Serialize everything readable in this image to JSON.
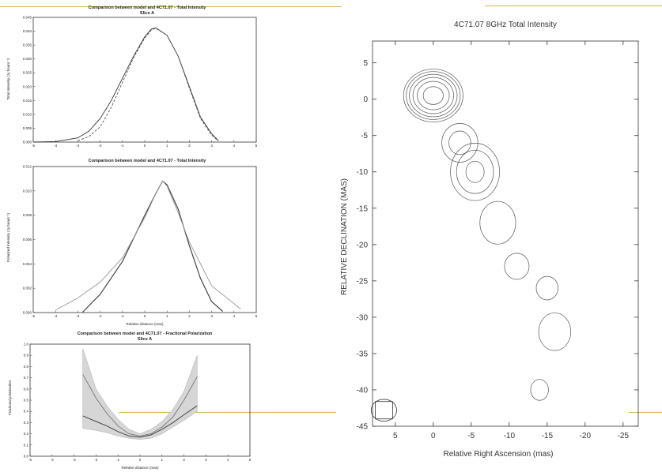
{
  "slide": {
    "accent_color": "#d9b64f"
  },
  "chart_data": [
    {
      "id": "total-intensity-profile",
      "type": "line",
      "title": "Comparison between model and 4C71.07 - Total Intensity",
      "subtitle": "Slice A",
      "xlabel": "",
      "ylabel": "Total Intensity (Jy beam⁻¹)",
      "xlim": [
        -5,
        5
      ],
      "ylim": [
        0,
        0.045
      ],
      "xticks": [
        "-5",
        "-4",
        "-3",
        "-2",
        "-1",
        "0",
        "1",
        "2",
        "3",
        "4",
        "5"
      ],
      "yticks": [
        "0.000",
        "0.005",
        "0.010",
        "0.015",
        "0.020",
        "0.025",
        "0.030",
        "0.035",
        "0.040",
        "0.045"
      ],
      "series": [
        {
          "style": "solid",
          "x": [
            -5,
            -4,
            -3,
            -2.5,
            -2,
            -1.5,
            -1,
            -0.5,
            0,
            0.3,
            0.5,
            1,
            1.5,
            2,
            2.5,
            3,
            3.3
          ],
          "y": [
            0,
            0.0002,
            0.0015,
            0.004,
            0.0085,
            0.015,
            0.023,
            0.031,
            0.038,
            0.0408,
            0.0412,
            0.0385,
            0.031,
            0.02,
            0.009,
            0.003,
            0.0005
          ]
        },
        {
          "style": "dashed",
          "x": [
            -3,
            -2.5,
            -2,
            -1.5,
            -1,
            -0.5,
            0,
            0.3,
            0.5,
            1,
            1.5,
            2,
            2.5,
            3,
            3.3
          ],
          "y": [
            0.0005,
            0.002,
            0.0055,
            0.0125,
            0.0215,
            0.0305,
            0.0375,
            0.0405,
            0.041,
            0.0385,
            0.031,
            0.0195,
            0.0085,
            0.0025,
            0.0004
          ]
        }
      ]
    },
    {
      "id": "polarized-intensity-profile",
      "type": "line",
      "title": "Comparison between model and 4C71.07 - Total Intensity",
      "xlabel": "Relative distance (mas)",
      "ylabel": "Polarized Intensity (Jy beam⁻¹)",
      "xlim": [
        -5,
        5
      ],
      "ylim": [
        0,
        0.012
      ],
      "xticks": [
        "-5",
        "-4",
        "-3",
        "-2",
        "-1",
        "0",
        "1",
        "2",
        "3",
        "4",
        "5"
      ],
      "yticks": [
        "0.000",
        "0.002",
        "0.004",
        "0.006",
        "0.008",
        "0.010",
        "0.012"
      ],
      "series": [
        {
          "style": "solid-dark",
          "x": [
            -2.8,
            -2,
            -1,
            0,
            0.5,
            0.8,
            1,
            1.5,
            2,
            2.5,
            3,
            3.5
          ],
          "y": [
            0,
            0.0015,
            0.0042,
            0.008,
            0.0098,
            0.0108,
            0.0105,
            0.0085,
            0.0055,
            0.0028,
            0.0009,
            0.0001
          ]
        },
        {
          "style": "solid-light",
          "x": [
            -4,
            -3,
            -2,
            -1,
            0,
            0.5,
            0.8,
            1,
            1.5,
            2,
            3,
            4.3
          ],
          "y": [
            0.0002,
            0.0012,
            0.0025,
            0.0045,
            0.0078,
            0.0098,
            0.0108,
            0.0104,
            0.0082,
            0.0058,
            0.0022,
            0.0003
          ]
        }
      ]
    },
    {
      "id": "fractional-polarization-profile",
      "type": "area",
      "title": "Comparison between model and 4C71.07 - Fractional Polarization",
      "subtitle": "Slice A",
      "xlabel": "Relative distance (mas)",
      "ylabel": "Fractional polarization",
      "xlim": [
        -5,
        5
      ],
      "ylim": [
        0,
        1.0
      ],
      "xticks": [
        "-5",
        "-4",
        "-3",
        "-2",
        "-1",
        "0",
        "1",
        "2",
        "3",
        "4",
        "5"
      ],
      "yticks": [
        "0.0",
        "0.1",
        "0.2",
        "0.3",
        "0.4",
        "0.5",
        "0.6",
        "0.7",
        "0.8",
        "0.9",
        "1.0"
      ],
      "band": {
        "x": [
          -2.6,
          -2,
          -1.5,
          -1,
          -0.5,
          0,
          0.5,
          1,
          1.5,
          2,
          2.6
        ],
        "upper": [
          0.96,
          0.6,
          0.45,
          0.33,
          0.24,
          0.2,
          0.24,
          0.31,
          0.42,
          0.58,
          0.9
        ],
        "lower": [
          0.25,
          0.23,
          0.21,
          0.18,
          0.16,
          0.15,
          0.16,
          0.2,
          0.26,
          0.32,
          0.4
        ]
      },
      "series": [
        {
          "style": "model",
          "x": [
            -2.6,
            -2,
            -1.5,
            -1,
            -0.5,
            0,
            0.5,
            1,
            1.5,
            2,
            2.6
          ],
          "y": [
            0.73,
            0.52,
            0.38,
            0.27,
            0.2,
            0.18,
            0.2,
            0.26,
            0.35,
            0.5,
            0.71
          ]
        },
        {
          "style": "observed",
          "x": [
            -2.6,
            -2,
            -1.5,
            -1,
            -0.5,
            0,
            0.5,
            1,
            1.5,
            2,
            2.6
          ],
          "y": [
            0.36,
            0.31,
            0.27,
            0.22,
            0.18,
            0.17,
            0.19,
            0.24,
            0.3,
            0.37,
            0.45
          ]
        }
      ]
    },
    {
      "id": "vlbi-contour-map",
      "type": "contour",
      "title": "4C71.07 8GHz Total Intensity",
      "xlabel": "Relative Right  Ascension (mas)",
      "ylabel": "RELATIVE DECLINATION (MAS)",
      "xlim": [
        8,
        -27
      ],
      "ylim": [
        -45,
        8
      ],
      "xticks": [
        "5",
        "0",
        "-5",
        "-10",
        "-15",
        "-20",
        "-25"
      ],
      "yticks": [
        "5",
        "0",
        "-5",
        "-10",
        "-15",
        "-20",
        "-25",
        "-30",
        "-35",
        "-40",
        "-45"
      ],
      "components": [
        {
          "x": 0,
          "y": 0.5,
          "sx": 1.4,
          "sy": 1.3,
          "peak": 100
        },
        {
          "x": -3.5,
          "y": -6,
          "sx": 1.6,
          "sy": 1.8,
          "peak": 6
        },
        {
          "x": -5.5,
          "y": -10,
          "sx": 1.8,
          "sy": 2.2,
          "peak": 10
        },
        {
          "x": -8.5,
          "y": -17,
          "sx": 2.0,
          "sy": 2.5,
          "peak": 4
        },
        {
          "x": -11,
          "y": -23,
          "sx": 1.8,
          "sy": 2.0,
          "peak": 3
        },
        {
          "x": -15,
          "y": -26,
          "sx": 1.6,
          "sy": 1.8,
          "peak": 3
        },
        {
          "x": -16,
          "y": -32,
          "sx": 1.8,
          "sy": 2.2,
          "peak": 4
        },
        {
          "x": -14,
          "y": -40,
          "sx": 1.3,
          "sy": 1.6,
          "peak": 3
        }
      ],
      "contour_levels": [
        2,
        4,
        8,
        16,
        32,
        64
      ],
      "beam": {
        "x": 6.5,
        "y": -42.8,
        "major": 1.4,
        "minor": 1.0
      }
    }
  ]
}
